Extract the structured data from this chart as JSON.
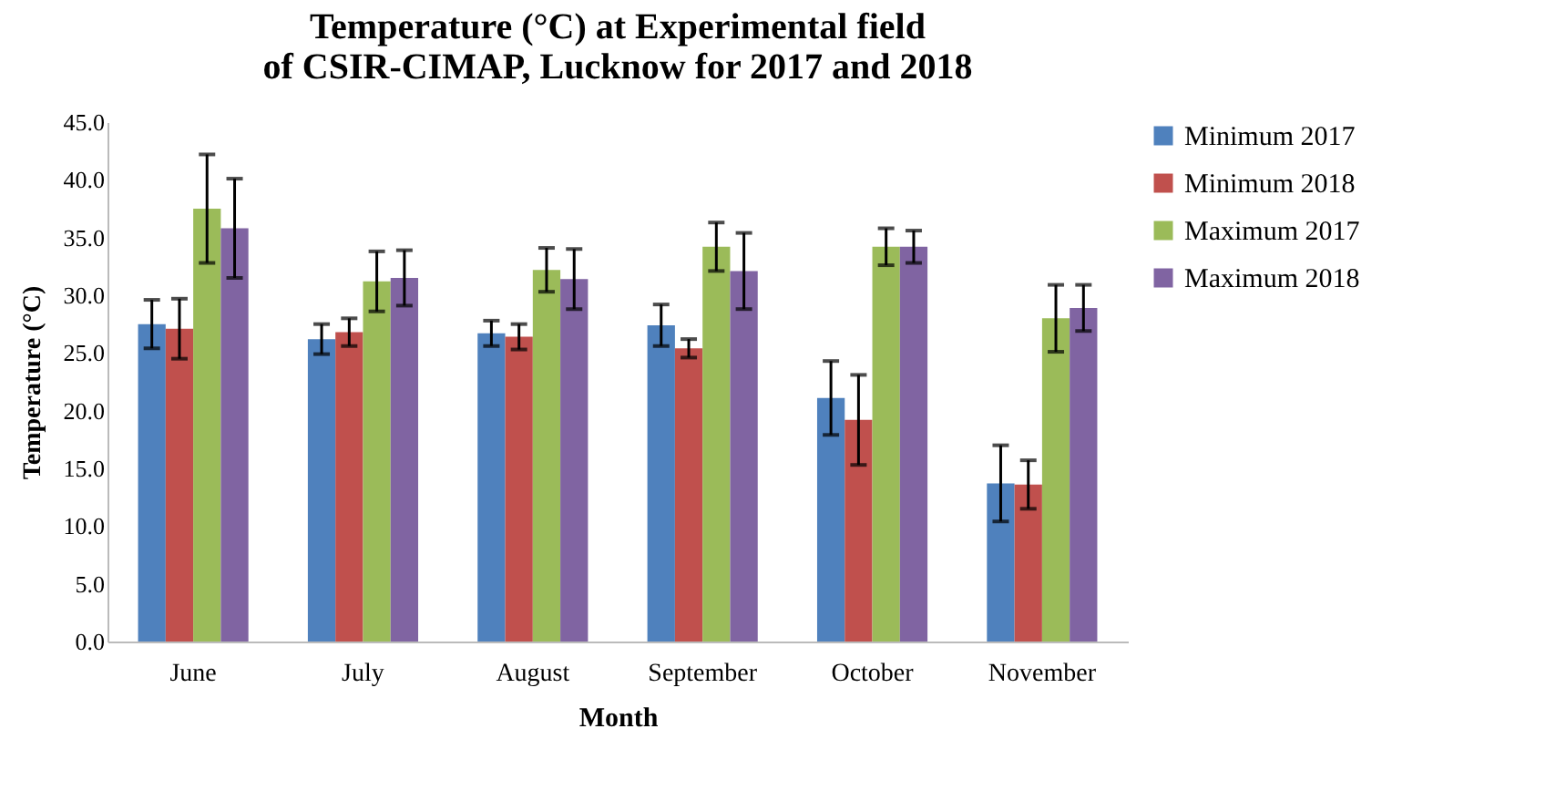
{
  "chart_data": {
    "type": "bar",
    "title": "Temperature (°C) at Experimental field of CSIR-CIMAP, Lucknow for 2017 and 2018",
    "xlabel": "Month",
    "ylabel": "Temperature (°C)",
    "categories": [
      "June",
      "July",
      "August",
      "September",
      "October",
      "November"
    ],
    "series": [
      {
        "name": "Minimum 2017",
        "color": "#4f81bd",
        "values": [
          27.5,
          26.2,
          26.7,
          27.4,
          21.1,
          13.7
        ],
        "errors": [
          2.1,
          1.3,
          1.1,
          1.8,
          3.2,
          3.3
        ]
      },
      {
        "name": "Minimum 2018",
        "color": "#c0504d",
        "values": [
          27.1,
          26.8,
          26.4,
          25.4,
          19.2,
          13.6
        ],
        "errors": [
          2.6,
          1.2,
          1.1,
          0.8,
          3.9,
          2.1
        ]
      },
      {
        "name": "Maximum 2017",
        "color": "#9bbb59",
        "values": [
          37.5,
          31.2,
          32.2,
          34.2,
          34.2,
          28.0
        ],
        "errors": [
          4.7,
          2.6,
          1.9,
          2.1,
          1.6,
          2.9
        ]
      },
      {
        "name": "Maximum 2018",
        "color": "#8064a2",
        "values": [
          35.8,
          31.5,
          31.4,
          32.1,
          34.2,
          28.9
        ],
        "errors": [
          4.3,
          2.4,
          2.6,
          3.3,
          1.4,
          2.0
        ]
      }
    ],
    "ylim": [
      0,
      45
    ],
    "yticks": [
      {
        "value": 0,
        "label": "0.0"
      },
      {
        "value": 5,
        "label": "5.0"
      },
      {
        "value": 10,
        "label": "10.0"
      },
      {
        "value": 15,
        "label": "15.0"
      },
      {
        "value": 20,
        "label": "20.0"
      },
      {
        "value": 25,
        "label": "25.0"
      },
      {
        "value": 30,
        "label": "30.0"
      },
      {
        "value": 35,
        "label": "35.0"
      },
      {
        "value": 40,
        "label": "40.0"
      },
      {
        "value": 45,
        "label": "45.0"
      }
    ],
    "grid": false,
    "legend": "right"
  }
}
